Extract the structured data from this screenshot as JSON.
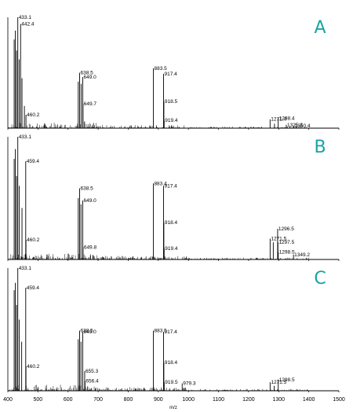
{
  "colors": {
    "letter": "#1aa3a3",
    "trace": "#000000"
  },
  "axis": {
    "xlabel": "m/z",
    "ticks": [
      400,
      500,
      600,
      700,
      800,
      900,
      1000,
      1100,
      1200,
      1300,
      1400,
      1500
    ],
    "xlim": [
      400,
      1500
    ]
  },
  "chart_data": [
    {
      "type": "mass-spectrum",
      "panel": "A",
      "xlabel": "m/z",
      "xlim": [
        400,
        1500
      ],
      "ylim": [
        0,
        100
      ],
      "peaks": [
        {
          "x": 421.0,
          "y": 80
        },
        {
          "x": 425.0,
          "y": 88
        },
        {
          "x": 429.0,
          "y": 70
        },
        {
          "x": 433.1,
          "y": 100,
          "label": "433.1"
        },
        {
          "x": 437.5,
          "y": 62
        },
        {
          "x": 442.4,
          "y": 94,
          "label": "442.4"
        },
        {
          "x": 447.0,
          "y": 45
        },
        {
          "x": 455.0,
          "y": 20
        },
        {
          "x": 460.2,
          "y": 12,
          "label": "460.2"
        },
        {
          "x": 634.0,
          "y": 42
        },
        {
          "x": 638.5,
          "y": 50,
          "label": "638.5"
        },
        {
          "x": 643.5,
          "y": 40
        },
        {
          "x": 649.0,
          "y": 46,
          "label": "649.0"
        },
        {
          "x": 649.7,
          "y": 22,
          "label": "649.7"
        },
        {
          "x": 655.0,
          "y": 6
        },
        {
          "x": 883.5,
          "y": 54,
          "label": "883.5"
        },
        {
          "x": 917.4,
          "y": 49,
          "label": "917.4"
        },
        {
          "x": 918.5,
          "y": 24,
          "label": "918.5"
        },
        {
          "x": 919.4,
          "y": 7,
          "label": "919.4"
        },
        {
          "x": 1271.4,
          "y": 8,
          "label": "1271.4"
        },
        {
          "x": 1298.4,
          "y": 9,
          "label": "1298.4"
        },
        {
          "x": 1286.0,
          "y": 4
        },
        {
          "x": 1325.3,
          "y": 3,
          "label": "1325.3"
        },
        {
          "x": 1350.4,
          "y": 2,
          "label": "1350.4"
        }
      ]
    },
    {
      "type": "mass-spectrum",
      "panel": "B",
      "xlabel": "m/z",
      "xlim": [
        400,
        1500
      ],
      "ylim": [
        0,
        100
      ],
      "peaks": [
        {
          "x": 421.0,
          "y": 82
        },
        {
          "x": 425.0,
          "y": 90
        },
        {
          "x": 429.0,
          "y": 68
        },
        {
          "x": 433.1,
          "y": 100,
          "label": "433.1"
        },
        {
          "x": 438.0,
          "y": 60
        },
        {
          "x": 447.0,
          "y": 42
        },
        {
          "x": 459.4,
          "y": 80,
          "label": "459.4"
        },
        {
          "x": 460.2,
          "y": 16,
          "label": "460.2"
        },
        {
          "x": 634.0,
          "y": 50
        },
        {
          "x": 638.5,
          "y": 58,
          "label": "638.5"
        },
        {
          "x": 643.0,
          "y": 45
        },
        {
          "x": 649.0,
          "y": 48,
          "label": "649.0"
        },
        {
          "x": 649.8,
          "y": 10,
          "label": "649.8"
        },
        {
          "x": 883.4,
          "y": 62,
          "label": "883.4"
        },
        {
          "x": 917.4,
          "y": 60,
          "label": "917.4"
        },
        {
          "x": 918.4,
          "y": 30,
          "label": "918.4"
        },
        {
          "x": 919.4,
          "y": 9,
          "label": "919.4"
        },
        {
          "x": 1271.5,
          "y": 17,
          "label": "1271.5"
        },
        {
          "x": 1282.0,
          "y": 14
        },
        {
          "x": 1296.5,
          "y": 25,
          "label": "1296.5"
        },
        {
          "x": 1297.5,
          "y": 14,
          "label": "1297.5"
        },
        {
          "x": 1298.5,
          "y": 6,
          "label": "1298.5"
        },
        {
          "x": 1349.2,
          "y": 4,
          "label": "1349.2"
        }
      ]
    },
    {
      "type": "mass-spectrum",
      "panel": "C",
      "xlabel": "m/z",
      "xlim": [
        400,
        1500
      ],
      "ylim": [
        0,
        100
      ],
      "peaks": [
        {
          "x": 421.0,
          "y": 82
        },
        {
          "x": 425.0,
          "y": 88
        },
        {
          "x": 429.0,
          "y": 70
        },
        {
          "x": 433.1,
          "y": 100,
          "label": "433.1"
        },
        {
          "x": 438.0,
          "y": 58
        },
        {
          "x": 446.0,
          "y": 40
        },
        {
          "x": 459.4,
          "y": 84,
          "label": "459.4"
        },
        {
          "x": 460.2,
          "y": 20,
          "label": "460.2"
        },
        {
          "x": 634.0,
          "y": 42
        },
        {
          "x": 638.5,
          "y": 49,
          "label": "638.5"
        },
        {
          "x": 643.0,
          "y": 40
        },
        {
          "x": 649.0,
          "y": 48,
          "label": "649.0"
        },
        {
          "x": 655.3,
          "y": 16,
          "label": "655.3"
        },
        {
          "x": 656.4,
          "y": 8,
          "label": "656.4"
        },
        {
          "x": 883.5,
          "y": 49,
          "label": "883.5"
        },
        {
          "x": 917.4,
          "y": 48,
          "label": "917.4"
        },
        {
          "x": 918.4,
          "y": 23,
          "label": "918.4"
        },
        {
          "x": 919.5,
          "y": 7,
          "label": "919.5"
        },
        {
          "x": 979.3,
          "y": 6,
          "label": "979.3"
        },
        {
          "x": 1271.5,
          "y": 7,
          "label": "1271.5"
        },
        {
          "x": 1298.5,
          "y": 9,
          "label": "1298.5"
        },
        {
          "x": 1285.0,
          "y": 4
        }
      ]
    }
  ]
}
